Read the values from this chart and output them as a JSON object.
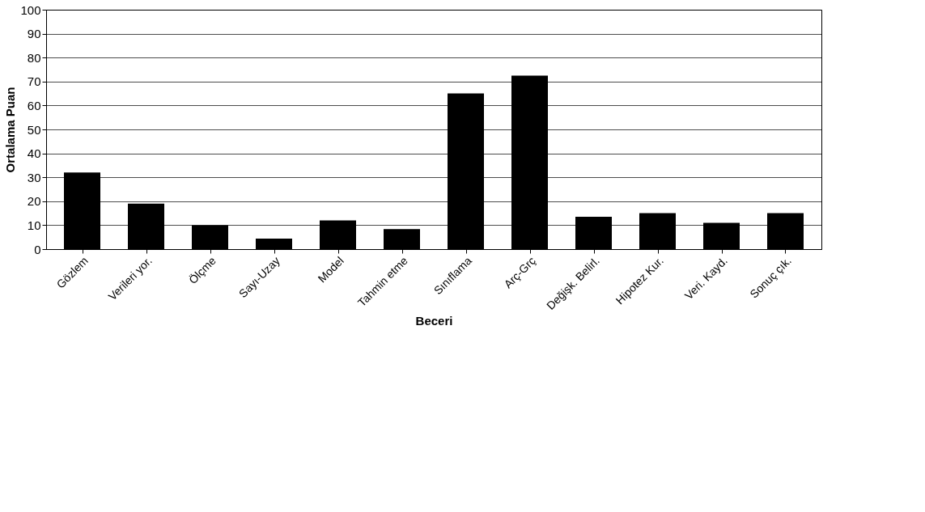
{
  "chart_data": {
    "type": "bar",
    "xlabel": "Beceri",
    "ylabel": "Ortalama Puan",
    "categories": [
      "Gözlem",
      "Verileri yor.",
      "Ölçme",
      "Sayı-Uzay",
      "Model",
      "Tahmin etme",
      "Sınıflama",
      "Arç-Grç",
      "Değişk. Belirl.",
      "Hipotez Kur.",
      "Veri. Kayd.",
      "Sonuç çık."
    ],
    "values": [
      32,
      19,
      10,
      4.4,
      12,
      8.4,
      65,
      72.5,
      13.5,
      15,
      11,
      15
    ],
    "color": "#000000",
    "ylim": [
      0,
      100
    ],
    "yticks": [
      0,
      10,
      20,
      30,
      40,
      50,
      60,
      70,
      80,
      90,
      100
    ],
    "grid": "y"
  }
}
